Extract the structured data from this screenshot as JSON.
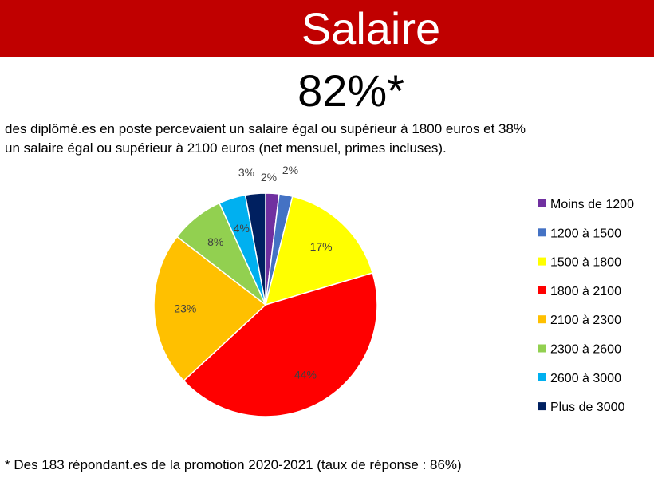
{
  "header": {
    "title": "Salaire"
  },
  "headline": {
    "stat": "82%*"
  },
  "description": {
    "line1": "des diplômé.es en poste percevaient un salaire égal ou supérieur à 1800 euros et 38%",
    "line2": "un salaire égal ou supérieur à 2100 euros (net mensuel, primes incluses)."
  },
  "footnote": "* Des 183 répondant.es de la promotion 2020-2021 (taux de réponse : 86%)",
  "chart_data": {
    "type": "pie",
    "title": "",
    "legend_position": "right",
    "slices": [
      {
        "label": "Moins de 1200",
        "value": 2,
        "display": "2%",
        "color": "#7030a0"
      },
      {
        "label": "1200 à 1500",
        "value": 2,
        "display": "2%",
        "color": "#4472c4"
      },
      {
        "label": "1500 à 1800",
        "value": 17,
        "display": "17%",
        "color": "#ffff00"
      },
      {
        "label": "1800 à 2100",
        "value": 44,
        "display": "44%",
        "color": "#ff0000"
      },
      {
        "label": "2100 à 2300",
        "value": 23,
        "display": "23%",
        "color": "#ffc000"
      },
      {
        "label": "2300 à 2600",
        "value": 8,
        "display": "8%",
        "color": "#92d050"
      },
      {
        "label": "2600 à 3000",
        "value": 4,
        "display": "4%",
        "color": "#00b0f0"
      },
      {
        "label": "Plus de 3000",
        "value": 3,
        "display": "3%",
        "color": "#002060"
      }
    ]
  }
}
